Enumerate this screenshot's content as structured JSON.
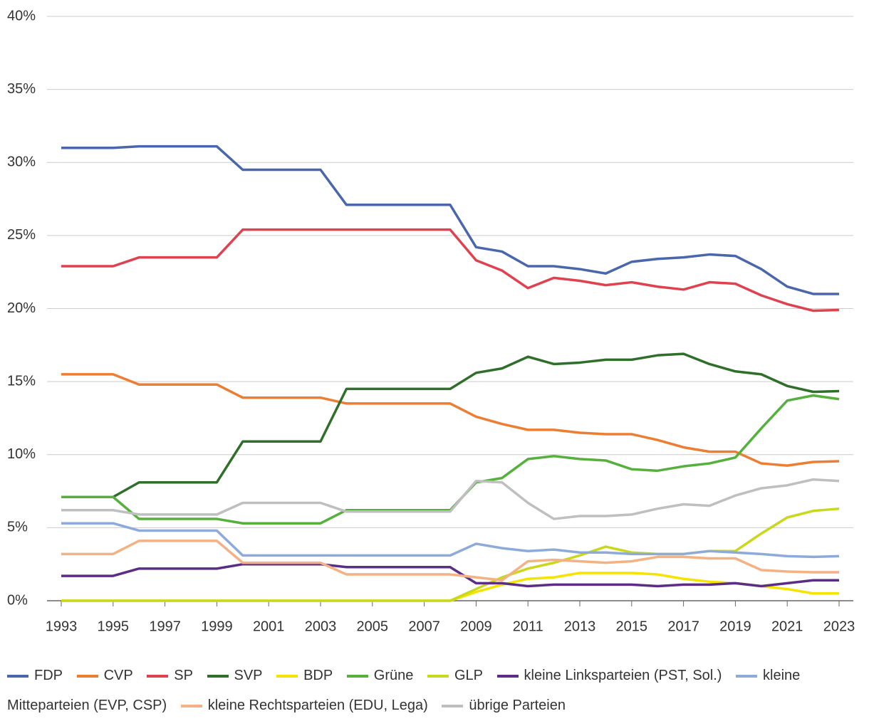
{
  "chart_data": {
    "type": "line",
    "x": [
      1993,
      1994,
      1995,
      1996,
      1997,
      1998,
      1999,
      2000,
      2001,
      2002,
      2003,
      2004,
      2005,
      2006,
      2007,
      2008,
      2009,
      2010,
      2011,
      2012,
      2013,
      2014,
      2015,
      2016,
      2017,
      2018,
      2019,
      2020,
      2021,
      2022,
      2023
    ],
    "xlim": [
      1993,
      2023
    ],
    "xticks": [
      1993,
      1995,
      1997,
      1999,
      2001,
      2003,
      2005,
      2007,
      2009,
      2011,
      2013,
      2015,
      2017,
      2019,
      2021,
      2023
    ],
    "ylim": [
      0,
      40
    ],
    "yticks": [
      {
        "value": 0,
        "label": "0%"
      },
      {
        "value": 5,
        "label": "5%"
      },
      {
        "value": 10,
        "label": "10%"
      },
      {
        "value": 15,
        "label": "15%"
      },
      {
        "value": 20,
        "label": "20%"
      },
      {
        "value": 25,
        "label": "25%"
      },
      {
        "value": 30,
        "label": "30%"
      },
      {
        "value": 35,
        "label": "35%"
      },
      {
        "value": 40,
        "label": "40%"
      }
    ],
    "grid": true,
    "series": [
      {
        "name": "FDP",
        "color": "#4a66ac",
        "values": [
          31,
          31,
          31,
          31.1,
          31.1,
          31.1,
          31.1,
          29.5,
          29.5,
          29.5,
          29.5,
          27.1,
          27.1,
          27.1,
          27.1,
          27.1,
          24.2,
          23.9,
          22.9,
          22.9,
          22.7,
          22.4,
          23.2,
          23.4,
          23.5,
          23.7,
          23.6,
          22.7,
          21.5,
          21.0,
          21.0
        ]
      },
      {
        "name": "CVP",
        "color": "#ed7d31",
        "values": [
          15.5,
          15.5,
          15.5,
          14.8,
          14.8,
          14.8,
          14.8,
          13.9,
          13.9,
          13.9,
          13.9,
          13.5,
          13.5,
          13.5,
          13.5,
          13.5,
          12.6,
          12.1,
          11.7,
          11.7,
          11.5,
          11.4,
          11.4,
          11.0,
          10.5,
          10.2,
          10.2,
          9.4,
          9.25,
          9.5,
          9.55
        ]
      },
      {
        "name": "SP",
        "color": "#e0414f",
        "values": [
          22.9,
          22.9,
          22.9,
          23.5,
          23.5,
          23.5,
          23.5,
          25.4,
          25.4,
          25.4,
          25.4,
          25.4,
          25.4,
          25.4,
          25.4,
          25.4,
          23.3,
          22.6,
          21.4,
          22.1,
          21.9,
          21.6,
          21.8,
          21.5,
          21.3,
          21.8,
          21.7,
          20.9,
          20.3,
          19.85,
          19.9
        ]
      },
      {
        "name": "SVP",
        "color": "#2f6f2a",
        "values": [
          7.1,
          7.1,
          7.1,
          8.1,
          8.1,
          8.1,
          8.1,
          10.9,
          10.9,
          10.9,
          10.9,
          14.5,
          14.5,
          14.5,
          14.5,
          14.5,
          15.6,
          15.9,
          16.7,
          16.2,
          16.3,
          16.5,
          16.5,
          16.8,
          16.9,
          16.2,
          15.7,
          15.5,
          14.7,
          14.3,
          14.35
        ]
      },
      {
        "name": "BDP",
        "color": "#f5e400",
        "values": [
          0,
          0,
          0,
          0,
          0,
          0,
          0,
          0,
          0,
          0,
          0,
          0,
          0,
          0,
          0,
          0,
          0.6,
          1.1,
          1.5,
          1.6,
          1.9,
          1.9,
          1.9,
          1.8,
          1.5,
          1.3,
          1.2,
          1.0,
          0.8,
          0.5,
          0.5
        ]
      },
      {
        "name": "Grüne",
        "color": "#55b03c",
        "values": [
          7.1,
          7.1,
          7.1,
          5.6,
          5.6,
          5.6,
          5.6,
          5.3,
          5.3,
          5.3,
          5.3,
          6.2,
          6.2,
          6.2,
          6.2,
          6.2,
          8.1,
          8.4,
          9.7,
          9.9,
          9.7,
          9.6,
          9.0,
          8.9,
          9.2,
          9.4,
          9.8,
          11.8,
          13.7,
          14.05,
          13.8
        ]
      },
      {
        "name": "GLP",
        "color": "#c9d81a",
        "values": [
          0,
          0,
          0,
          0,
          0,
          0,
          0,
          0,
          0,
          0,
          0,
          0,
          0,
          0,
          0,
          0,
          0.8,
          1.6,
          2.2,
          2.6,
          3.1,
          3.7,
          3.3,
          3.2,
          3.2,
          3.4,
          3.4,
          4.6,
          5.7,
          6.15,
          6.3
        ]
      },
      {
        "name": "kleine Linksparteien (PST, Sol.)",
        "color": "#5b2d86",
        "values": [
          1.7,
          1.7,
          1.7,
          2.2,
          2.2,
          2.2,
          2.2,
          2.5,
          2.5,
          2.5,
          2.5,
          2.3,
          2.3,
          2.3,
          2.3,
          2.3,
          1.2,
          1.2,
          1.0,
          1.1,
          1.1,
          1.1,
          1.1,
          1.0,
          1.1,
          1.1,
          1.2,
          1.0,
          1.2,
          1.4,
          1.4
        ]
      },
      {
        "name": "kleine Mitteparteien (EVP, CSP)",
        "color": "#8eaadb",
        "values": [
          5.3,
          5.3,
          5.3,
          4.8,
          4.8,
          4.8,
          4.8,
          3.1,
          3.1,
          3.1,
          3.1,
          3.1,
          3.1,
          3.1,
          3.1,
          3.1,
          3.9,
          3.6,
          3.4,
          3.5,
          3.3,
          3.3,
          3.2,
          3.2,
          3.2,
          3.4,
          3.3,
          3.2,
          3.05,
          3.0,
          3.05
        ]
      },
      {
        "name": "kleine Rechtsparteien (EDU, Lega)",
        "color": "#f4b183",
        "values": [
          3.2,
          3.2,
          3.2,
          4.1,
          4.1,
          4.1,
          4.1,
          2.6,
          2.6,
          2.6,
          2.6,
          1.8,
          1.8,
          1.8,
          1.8,
          1.8,
          1.6,
          1.4,
          2.7,
          2.8,
          2.7,
          2.6,
          2.7,
          3.0,
          3.0,
          2.9,
          2.9,
          2.1,
          2.0,
          1.95,
          1.95
        ]
      },
      {
        "name": "übrige Parteien",
        "color": "#bfbfbf",
        "values": [
          6.2,
          6.2,
          6.2,
          5.9,
          5.9,
          5.9,
          5.9,
          6.7,
          6.7,
          6.7,
          6.7,
          6.1,
          6.1,
          6.1,
          6.1,
          6.1,
          8.2,
          8.1,
          6.7,
          5.6,
          5.8,
          5.8,
          5.9,
          6.3,
          6.6,
          6.5,
          7.2,
          7.7,
          7.9,
          8.3,
          8.2
        ]
      }
    ]
  }
}
